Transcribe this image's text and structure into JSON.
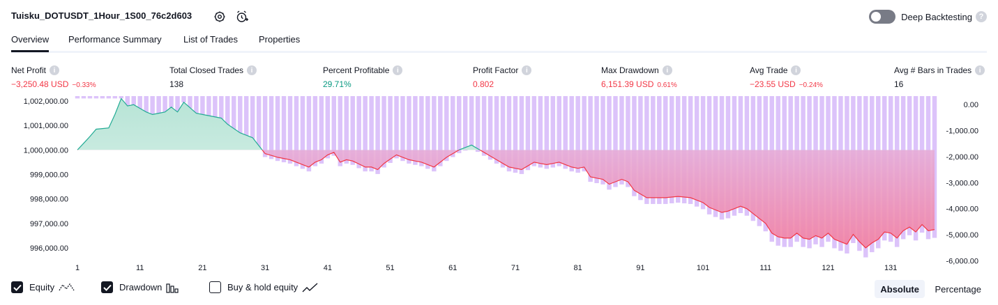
{
  "header": {
    "strategy_name": "Tuisku_DOTUSDT_1Hour_1S00_76c2d603",
    "deep_backtesting_label": "Deep Backtesting",
    "deep_backtesting_enabled": false,
    "help_glyph": "?"
  },
  "tabs": [
    {
      "label": "Overview",
      "active": true
    },
    {
      "label": "Performance Summary",
      "active": false
    },
    {
      "label": "List of Trades",
      "active": false
    },
    {
      "label": "Properties",
      "active": false
    }
  ],
  "stats": [
    {
      "label": "Net Profit",
      "value": "−3,250.48 USD",
      "pct": "−0.33%",
      "tone": "neg"
    },
    {
      "label": "Total Closed Trades",
      "value": "138",
      "pct": "",
      "tone": "neu"
    },
    {
      "label": "Percent Profitable",
      "value": "29.71%",
      "pct": "",
      "tone": "pos"
    },
    {
      "label": "Profit Factor",
      "value": "0.802",
      "pct": "",
      "tone": "neg"
    },
    {
      "label": "Max Drawdown",
      "value": "6,151.39 USD",
      "pct": "0.61%",
      "tone": "neg"
    },
    {
      "label": "Avg Trade",
      "value": "−23.55 USD",
      "pct": "−0.24%",
      "tone": "neg"
    },
    {
      "label": "Avg # Bars in Trades",
      "value": "16",
      "pct": "",
      "tone": "neu"
    }
  ],
  "chart_data": {
    "type": "area",
    "equity_baseline": 1000000,
    "equity_axis": {
      "range": [
        995600,
        1002200
      ],
      "ticks": [
        "1,002,000.00",
        "1,001,000.00",
        "1,000,000.00",
        "999,000.00",
        "998,000.00",
        "997,000.00",
        "996,000.00"
      ],
      "tick_values": [
        1002000,
        1001000,
        1000000,
        999000,
        998000,
        997000,
        996000
      ]
    },
    "drawdown_axis": {
      "range": [
        0,
        -6200
      ],
      "ticks": [
        "0.00",
        "-1,000.00",
        "-2,000.00",
        "-3,000.00",
        "-4,000.00",
        "-5,000.00",
        "-6,000.00"
      ],
      "tick_values": [
        0,
        -1000,
        -2000,
        -3000,
        -4000,
        -5000,
        -6000
      ]
    },
    "x_ticks": [
      "1",
      "11",
      "21",
      "31",
      "41",
      "51",
      "61",
      "71",
      "81",
      "91",
      "101",
      "111",
      "121",
      "131"
    ],
    "trade_count": 138,
    "equity_keypoints": [
      [
        1,
        1000000
      ],
      [
        3,
        1000550
      ],
      [
        4,
        1000850
      ],
      [
        6,
        1000900
      ],
      [
        7,
        1001450
      ],
      [
        8,
        1002100
      ],
      [
        9,
        1001800
      ],
      [
        10,
        1001850
      ],
      [
        12,
        1001550
      ],
      [
        13,
        1001450
      ],
      [
        15,
        1001550
      ],
      [
        16,
        1001750
      ],
      [
        17,
        1001550
      ],
      [
        18,
        1001950
      ],
      [
        20,
        1001500
      ],
      [
        22,
        1001400
      ],
      [
        24,
        1001300
      ],
      [
        25,
        1001050
      ],
      [
        27,
        1000700
      ],
      [
        29,
        1000500
      ],
      [
        31,
        999850
      ],
      [
        33,
        999700
      ],
      [
        35,
        999600
      ],
      [
        37,
        999400
      ],
      [
        38,
        999300
      ],
      [
        39,
        999500
      ],
      [
        40,
        999600
      ],
      [
        41,
        999800
      ],
      [
        42,
        999900
      ],
      [
        43,
        999500
      ],
      [
        44,
        999600
      ],
      [
        45,
        999550
      ],
      [
        47,
        999300
      ],
      [
        48,
        999300
      ],
      [
        49,
        999200
      ],
      [
        50,
        999450
      ],
      [
        52,
        999800
      ],
      [
        54,
        999600
      ],
      [
        56,
        999500
      ],
      [
        58,
        999300
      ],
      [
        60,
        999700
      ],
      [
        62,
        1000000
      ],
      [
        64,
        1000200
      ],
      [
        66,
        999900
      ],
      [
        68,
        999600
      ],
      [
        70,
        999300
      ],
      [
        72,
        999200
      ],
      [
        74,
        999500
      ],
      [
        76,
        999400
      ],
      [
        78,
        999500
      ],
      [
        80,
        999300
      ],
      [
        81,
        999250
      ],
      [
        82,
        999300
      ],
      [
        83,
        998900
      ],
      [
        85,
        998800
      ],
      [
        86,
        998600
      ],
      [
        88,
        998800
      ],
      [
        89,
        998700
      ],
      [
        90,
        998350
      ],
      [
        92,
        998050
      ],
      [
        95,
        998050
      ],
      [
        97,
        998100
      ],
      [
        99,
        998050
      ],
      [
        101,
        997850
      ],
      [
        102,
        997650
      ],
      [
        104,
        997450
      ],
      [
        105,
        997500
      ],
      [
        107,
        997700
      ],
      [
        108,
        997600
      ],
      [
        109,
        997400
      ],
      [
        111,
        997000
      ],
      [
        112,
        996600
      ],
      [
        113,
        996450
      ],
      [
        114,
        996400
      ],
      [
        115,
        996400
      ],
      [
        116,
        996600
      ],
      [
        117,
        996400
      ],
      [
        118,
        996350
      ],
      [
        119,
        996500
      ],
      [
        120,
        996400
      ],
      [
        121,
        996600
      ],
      [
        122,
        996350
      ],
      [
        124,
        996150
      ],
      [
        125,
        996550
      ],
      [
        126,
        996250
      ],
      [
        127,
        996000
      ],
      [
        128,
        996200
      ],
      [
        129,
        996350
      ],
      [
        130,
        996650
      ],
      [
        131,
        996600
      ],
      [
        132,
        996400
      ],
      [
        133,
        996700
      ],
      [
        134,
        996850
      ],
      [
        135,
        996650
      ],
      [
        136,
        996950
      ],
      [
        137,
        996700
      ],
      [
        138,
        996750
      ]
    ],
    "peak_equity": 1002100,
    "series_colors": {
      "equity_up_line": "#22ab94",
      "equity_up_fill": "#d5efe8",
      "equity_down_line": "#f23645",
      "equity_down_fill_top": "#d9b8f0",
      "equity_down_fill_bottom": "#f27fa0",
      "drawdown_bars": "#dcc3fa"
    },
    "grid": false
  },
  "footer": {
    "equity_label": "Equity",
    "equity_checked": true,
    "drawdown_label": "Drawdown",
    "drawdown_checked": true,
    "buyhold_label": "Buy & hold equity",
    "buyhold_checked": false,
    "absolute_label": "Absolute",
    "percentage_label": "Percentage",
    "active_mode": "absolute"
  },
  "icons": {
    "settings": "gear-icon",
    "alert": "alarm-clock-plus-icon",
    "equity_legend": "equity-line-icon",
    "drawdown_legend": "bar-chart-icon",
    "buyhold_legend": "trend-line-icon"
  }
}
